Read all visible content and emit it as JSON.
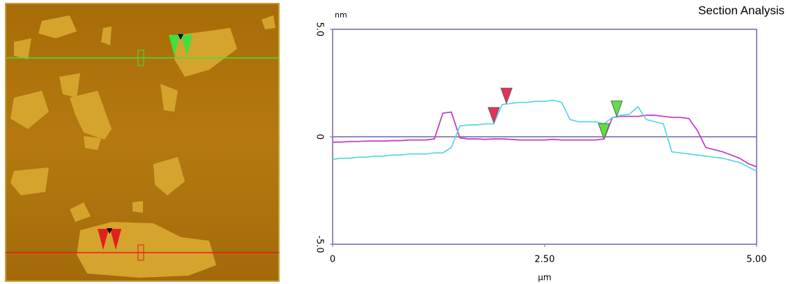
{
  "chart_data": {
    "type": "line",
    "title": "Section Analysis",
    "y_label": "nm",
    "x_label": "µm",
    "xlim": [
      0,
      5
    ],
    "ylim": [
      -5,
      5
    ],
    "xticks": [
      0,
      {
        "value": 2.5,
        "label": "2.50"
      },
      {
        "value": 5,
        "label": "5.00"
      }
    ],
    "yticks": [
      {
        "value": -5,
        "label": "-5.0"
      },
      0,
      {
        "value": 5,
        "label": "5.0"
      }
    ],
    "zero_line": true,
    "x": [
      0,
      0.1,
      0.2,
      0.3,
      0.4,
      0.5,
      0.6,
      0.7,
      0.8,
      0.9,
      1.0,
      1.1,
      1.2,
      1.3,
      1.4,
      1.5,
      1.6,
      1.7,
      1.8,
      1.9,
      2.0,
      2.1,
      2.2,
      2.3,
      2.4,
      2.5,
      2.6,
      2.7,
      2.8,
      2.9,
      3.0,
      3.1,
      3.2,
      3.3,
      3.4,
      3.5,
      3.6,
      3.7,
      3.8,
      3.9,
      4.0,
      4.1,
      4.2,
      4.3,
      4.4,
      4.5,
      4.6,
      4.7,
      4.8,
      4.9,
      5.0
    ],
    "series": [
      {
        "color": "#c040c8",
        "values": [
          -0.25,
          -0.25,
          -0.22,
          -0.22,
          -0.2,
          -0.2,
          -0.2,
          -0.18,
          -0.18,
          -0.15,
          -0.15,
          -0.15,
          -0.1,
          1.1,
          1.15,
          -0.05,
          -0.1,
          -0.1,
          -0.12,
          -0.1,
          -0.1,
          -0.12,
          -0.15,
          -0.15,
          -0.15,
          -0.15,
          -0.12,
          -0.15,
          -0.15,
          -0.15,
          -0.15,
          -0.15,
          -0.1,
          0.9,
          0.95,
          0.95,
          0.95,
          1.0,
          1.0,
          0.95,
          0.9,
          0.9,
          0.85,
          0.3,
          -0.5,
          -0.6,
          -0.7,
          -0.85,
          -1.0,
          -1.25,
          -1.4
        ]
      },
      {
        "color": "#60d8e0",
        "values": [
          -1.05,
          -1.0,
          -1.0,
          -0.95,
          -0.95,
          -0.9,
          -0.9,
          -0.85,
          -0.85,
          -0.8,
          -0.8,
          -0.8,
          -0.75,
          -0.75,
          -0.5,
          0.5,
          0.55,
          0.55,
          0.6,
          0.6,
          1.5,
          1.55,
          1.6,
          1.6,
          1.65,
          1.65,
          1.7,
          1.6,
          0.8,
          0.7,
          0.7,
          0.7,
          0.6,
          0.9,
          1.0,
          1.05,
          1.4,
          0.8,
          0.7,
          0.6,
          -0.7,
          -0.75,
          -0.8,
          -0.85,
          -0.9,
          -0.95,
          -1.0,
          -1.1,
          -1.2,
          -1.4,
          -1.6
        ]
      }
    ],
    "cursors": [
      {
        "x": 1.9,
        "y": 0.65,
        "color": "#e8305a"
      },
      {
        "x": 2.05,
        "y": 1.55,
        "color": "#e8305a"
      },
      {
        "x": 3.2,
        "y": -0.1,
        "color": "#60e040"
      },
      {
        "x": 3.35,
        "y": 0.95,
        "color": "#60e040"
      }
    ]
  }
}
